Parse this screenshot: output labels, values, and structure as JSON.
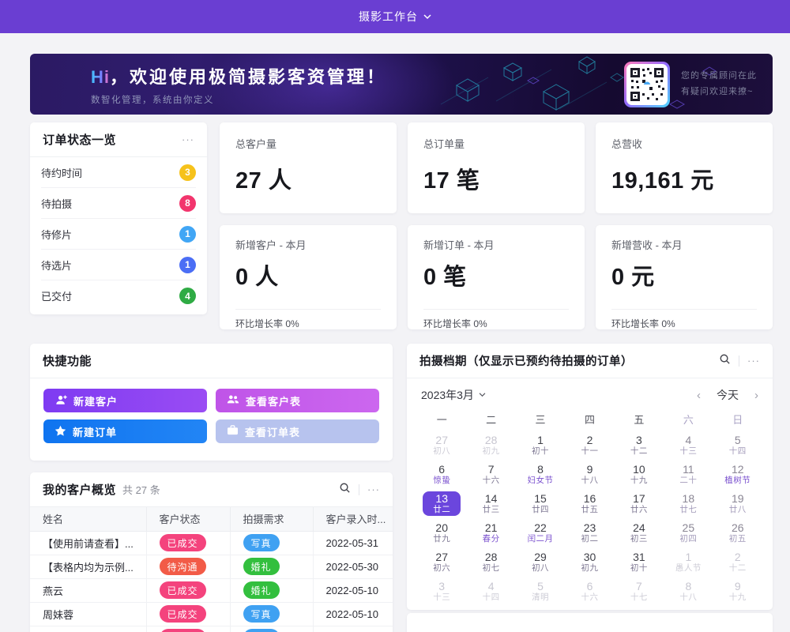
{
  "topbar": {
    "title": "摄影工作台"
  },
  "banner": {
    "hi": "Hi",
    "title_rest": "，欢迎使用极简摄影客资管理！",
    "subtitle": "数智化管理，系统由你定义",
    "qr_line1": "您的专属顾问在此",
    "qr_line2": "有疑问欢迎来撩~"
  },
  "order_status": {
    "title": "订单状态一览",
    "menu": "···",
    "items": [
      {
        "label": "待约时间",
        "count": "3",
        "bg": "#f6c21b"
      },
      {
        "label": "待拍摄",
        "count": "8",
        "bg": "#f2356d"
      },
      {
        "label": "待修片",
        "count": "1",
        "bg": "#41a6f5"
      },
      {
        "label": "待选片",
        "count": "1",
        "bg": "#4b6ef5"
      },
      {
        "label": "已交付",
        "count": "4",
        "bg": "#2fab44"
      }
    ]
  },
  "stats": {
    "row1": [
      {
        "label": "总客户量",
        "value": "27 人"
      },
      {
        "label": "总订单量",
        "value": "17 笔"
      },
      {
        "label": "总营收",
        "value": "19,161 元"
      }
    ],
    "row2": [
      {
        "label": "新增客户 - 本月",
        "value": "0 人",
        "footer": "环比增长率 0%"
      },
      {
        "label": "新增订单 - 本月",
        "value": "0 笔",
        "footer": "环比增长率 0%"
      },
      {
        "label": "新增营收 - 本月",
        "value": "0 元",
        "footer": "环比增长率 0%"
      }
    ]
  },
  "quick": {
    "title": "快捷功能",
    "buttons": [
      {
        "label": "新建客户",
        "icon": "person-add",
        "bg": "linear-gradient(90deg,#7e3bf2,#9a4cf3)"
      },
      {
        "label": "查看客户表",
        "icon": "people",
        "bg": "linear-gradient(90deg,#bf54e8,#cc67ef)"
      },
      {
        "label": "新建订单",
        "icon": "star",
        "bg": "linear-gradient(90deg,#0f74f0,#2285f5)"
      },
      {
        "label": "查看订单表",
        "icon": "briefcase",
        "bg": "#b7c3ee"
      }
    ]
  },
  "customers": {
    "title": "我的客户概览",
    "count_text": "共 27 条",
    "menu": "···",
    "columns": [
      "姓名",
      "客户状态",
      "拍摄需求",
      "客户录入时..."
    ],
    "rows": [
      {
        "name": "【使用前请查看】...",
        "status": "已成交",
        "status_bg": "#f4437d",
        "need": "写真",
        "need_bg": "#3fa1f2",
        "date": "2022-05-31"
      },
      {
        "name": "【表格内均为示例...",
        "status": "待沟通",
        "status_bg": "#f25b47",
        "need": "婚礼",
        "need_bg": "#33bf3e",
        "date": "2022-05-30"
      },
      {
        "name": "燕云",
        "status": "已成交",
        "status_bg": "#f4437d",
        "need": "婚礼",
        "need_bg": "#33bf3e",
        "date": "2022-05-10"
      },
      {
        "name": "周妹蓉",
        "status": "已成交",
        "status_bg": "#f4437d",
        "need": "写真",
        "need_bg": "#3fa1f2",
        "date": "2022-05-10"
      },
      {
        "name": "",
        "status": "已成交",
        "status_bg": "#f4437d",
        "need": "写真",
        "need_bg": "#3fa1f2",
        "date": ""
      }
    ]
  },
  "calendar": {
    "title": "拍摄档期（仅显示已预约待拍摄的订单）",
    "menu": "···",
    "month_label": "2023年3月",
    "prev": "‹",
    "today_label": "今天",
    "next": "›",
    "selected_color": "#6b46dd",
    "weekdays": [
      {
        "label": "一",
        "cls": ""
      },
      {
        "label": "二",
        "cls": ""
      },
      {
        "label": "三",
        "cls": ""
      },
      {
        "label": "四",
        "cls": ""
      },
      {
        "label": "五",
        "cls": ""
      },
      {
        "label": "六",
        "cls": "wknd"
      },
      {
        "label": "日",
        "cls": "wknd"
      }
    ],
    "days": [
      {
        "d": "27",
        "l": "初八",
        "cls": "dim"
      },
      {
        "d": "28",
        "l": "初九",
        "cls": "dim"
      },
      {
        "d": "1",
        "l": "初十",
        "cls": ""
      },
      {
        "d": "2",
        "l": "十一",
        "cls": ""
      },
      {
        "d": "3",
        "l": "十二",
        "cls": ""
      },
      {
        "d": "4",
        "l": "十三",
        "cls": "wknd"
      },
      {
        "d": "5",
        "l": "十四",
        "cls": "wknd"
      },
      {
        "d": "6",
        "l": "惊蛰",
        "cls": "fest"
      },
      {
        "d": "7",
        "l": "十六",
        "cls": ""
      },
      {
        "d": "8",
        "l": "妇女节",
        "cls": "fest"
      },
      {
        "d": "9",
        "l": "十八",
        "cls": ""
      },
      {
        "d": "10",
        "l": "十九",
        "cls": ""
      },
      {
        "d": "11",
        "l": "二十",
        "cls": "wknd"
      },
      {
        "d": "12",
        "l": "植树节",
        "cls": "wknd fest"
      },
      {
        "d": "13",
        "l": "廿二",
        "cls": "sel"
      },
      {
        "d": "14",
        "l": "廿三",
        "cls": ""
      },
      {
        "d": "15",
        "l": "廿四",
        "cls": ""
      },
      {
        "d": "16",
        "l": "廿五",
        "cls": ""
      },
      {
        "d": "17",
        "l": "廿六",
        "cls": ""
      },
      {
        "d": "18",
        "l": "廿七",
        "cls": "wknd"
      },
      {
        "d": "19",
        "l": "廿八",
        "cls": "wknd"
      },
      {
        "d": "20",
        "l": "廿九",
        "cls": ""
      },
      {
        "d": "21",
        "l": "春分",
        "cls": "fest"
      },
      {
        "d": "22",
        "l": "闰二月",
        "cls": "fest"
      },
      {
        "d": "23",
        "l": "初二",
        "cls": ""
      },
      {
        "d": "24",
        "l": "初三",
        "cls": ""
      },
      {
        "d": "25",
        "l": "初四",
        "cls": "wknd"
      },
      {
        "d": "26",
        "l": "初五",
        "cls": "wknd"
      },
      {
        "d": "27",
        "l": "初六",
        "cls": ""
      },
      {
        "d": "28",
        "l": "初七",
        "cls": ""
      },
      {
        "d": "29",
        "l": "初八",
        "cls": ""
      },
      {
        "d": "30",
        "l": "初九",
        "cls": ""
      },
      {
        "d": "31",
        "l": "初十",
        "cls": ""
      },
      {
        "d": "1",
        "l": "愚人节",
        "cls": "dim"
      },
      {
        "d": "2",
        "l": "十二",
        "cls": "dim"
      },
      {
        "d": "3",
        "l": "十三",
        "cls": "dim"
      },
      {
        "d": "4",
        "l": "十四",
        "cls": "dim"
      },
      {
        "d": "5",
        "l": "清明",
        "cls": "dim"
      },
      {
        "d": "6",
        "l": "十六",
        "cls": "dim"
      },
      {
        "d": "7",
        "l": "十七",
        "cls": "dim"
      },
      {
        "d": "8",
        "l": "十八",
        "cls": "dim"
      },
      {
        "d": "9",
        "l": "十九",
        "cls": "dim"
      }
    ]
  }
}
